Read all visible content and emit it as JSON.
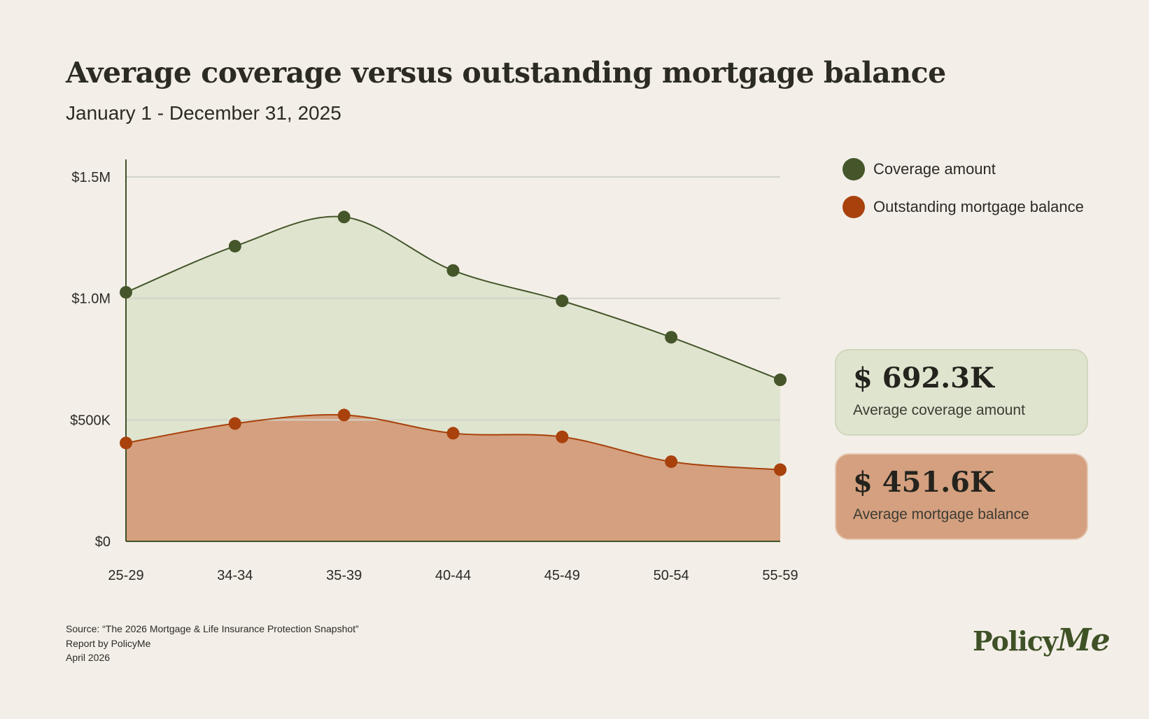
{
  "header": {
    "title": "Average coverage versus outstanding mortgage balance",
    "subtitle": "January 1 - December 31, 2025"
  },
  "legend": {
    "items": [
      {
        "label": "Coverage amount",
        "color": "#45562a"
      },
      {
        "label": "Outstanding mortgage balance",
        "color": "#a8410c"
      }
    ]
  },
  "stats": {
    "coverage": {
      "value": "$ 692.3K",
      "label": "Average coverage amount"
    },
    "mortgage": {
      "value": "$ 451.6K",
      "label": "Average mortgage balance"
    }
  },
  "source": {
    "line1": "Source: “The 2026 Mortgage & Life Insurance Protection Snapshot”",
    "line2": "Report by PolicyMe",
    "line3": "April 2026"
  },
  "logo": {
    "text": "Policy",
    "accent": "Me"
  },
  "chart_data": {
    "type": "area",
    "categories": [
      "25-29",
      "34-34",
      "35-39",
      "40-44",
      "45-49",
      "50-54",
      "55-59"
    ],
    "series": [
      {
        "name": "Coverage amount",
        "values": [
          1025000,
          1215000,
          1335000,
          1115000,
          990000,
          840000,
          665000
        ],
        "color": "#45562a",
        "fill": "#dfe4cf"
      },
      {
        "name": "Outstanding mortgage balance",
        "values": [
          405000,
          485000,
          520000,
          445000,
          430000,
          328000,
          295000
        ],
        "color": "#a8410c",
        "fill": "#d4a07f"
      }
    ],
    "ylim": [
      0,
      1500000
    ],
    "yticks": [
      {
        "value": 0,
        "label": "$0"
      },
      {
        "value": 500000,
        "label": "$500K"
      },
      {
        "value": 1000000,
        "label": "$1.0M"
      },
      {
        "value": 1500000,
        "label": "$1.5M"
      }
    ],
    "grid": true
  }
}
